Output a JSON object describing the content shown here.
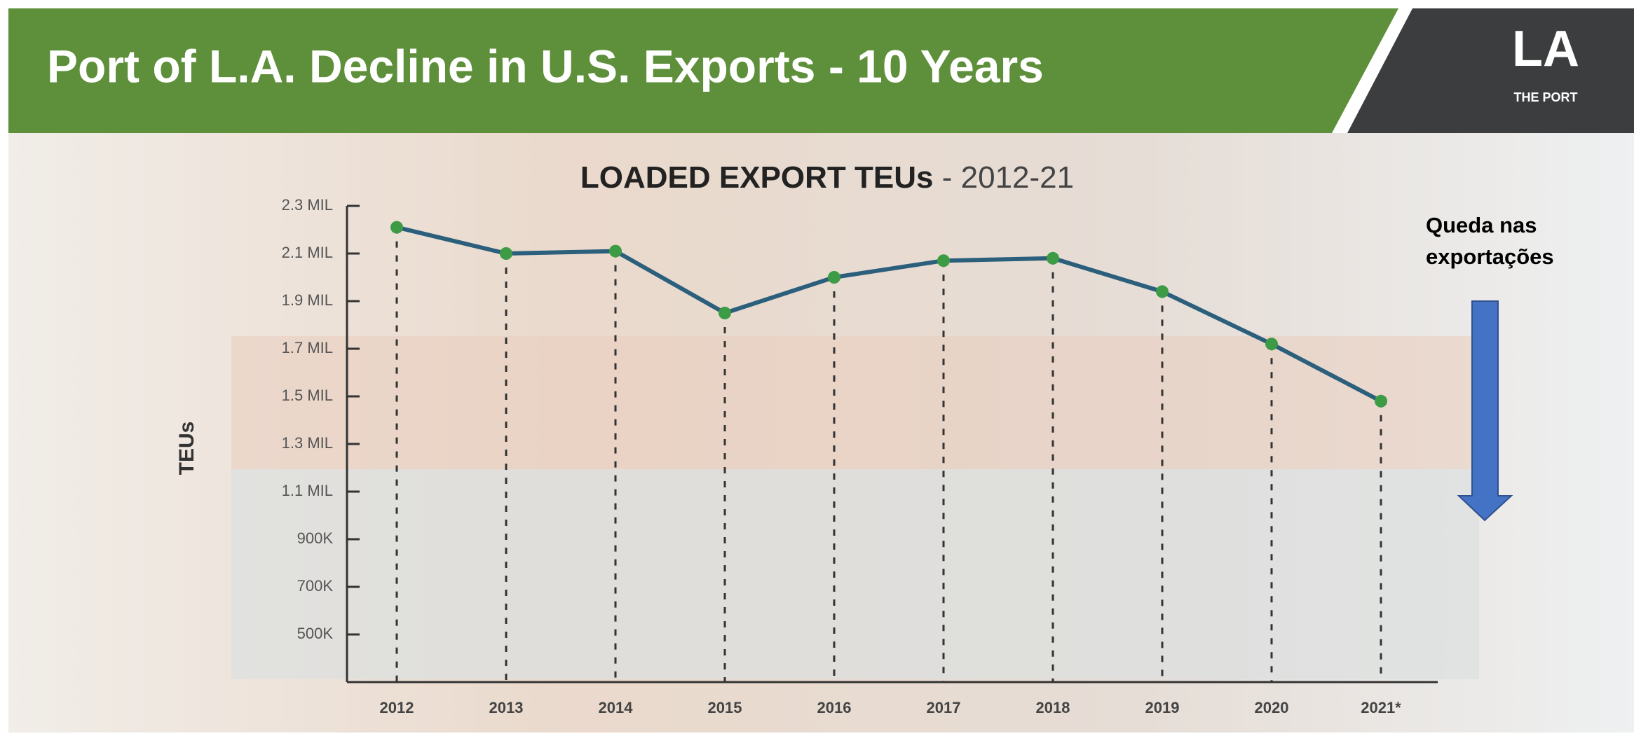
{
  "slide_title": "Port of L.A. Decline in U.S. Exports - 10 Years",
  "logo": {
    "mark": "LA",
    "caption": "THE PORT"
  },
  "chart_data": {
    "type": "line",
    "title": "LOADED EXPORT TEUs",
    "subtitle": "- 2012-21",
    "y_label": "TEUs",
    "categories": [
      "2012",
      "2013",
      "2014",
      "2015",
      "2016",
      "2017",
      "2018",
      "2019",
      "2020",
      "2021*"
    ],
    "series": [
      {
        "name": "Loaded export TEUs",
        "color": "#2b5f7c",
        "marker_color": "#3d9b45",
        "values": [
          2210000,
          2100000,
          2110000,
          1850000,
          2000000,
          2070000,
          2080000,
          1940000,
          1720000,
          1480000
        ]
      }
    ],
    "ylim": [
      300000,
      2300000
    ],
    "yticks": [
      {
        "value": 500000,
        "label": "500K"
      },
      {
        "value": 700000,
        "label": "700K"
      },
      {
        "value": 900000,
        "label": "900K"
      },
      {
        "value": 1100000,
        "label": "1.1 MIL"
      },
      {
        "value": 1300000,
        "label": "1.3 MIL"
      },
      {
        "value": 1500000,
        "label": "1.5 MIL"
      },
      {
        "value": 1700000,
        "label": "1.7 MIL"
      },
      {
        "value": 1900000,
        "label": "1.9 MIL"
      },
      {
        "value": 2100000,
        "label": "2.1 MIL"
      },
      {
        "value": 2300000,
        "label": "2.3 MIL"
      }
    ],
    "drop_lines": true,
    "annotation": [
      "Queda nas",
      "exportações"
    ]
  }
}
